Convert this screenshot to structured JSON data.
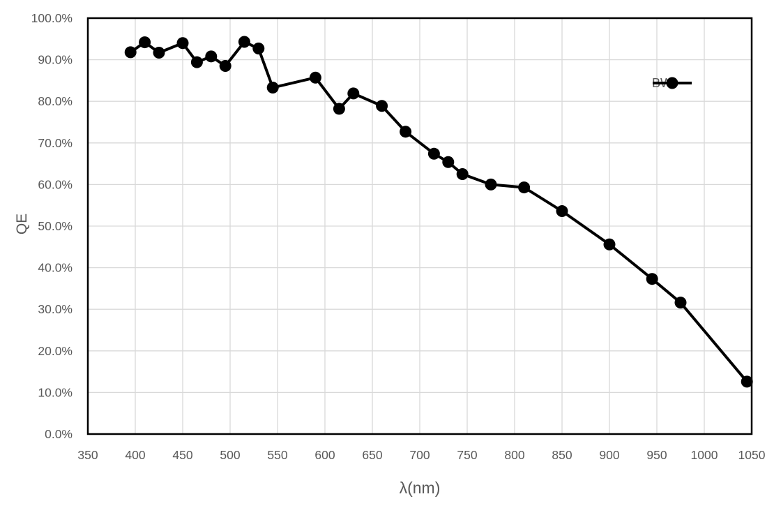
{
  "chart_data": {
    "type": "line",
    "title": "",
    "xlabel": "λ(nm)",
    "ylabel": "QE",
    "xlim": [
      350,
      1050
    ],
    "ylim_pct": [
      0,
      100
    ],
    "grid": true,
    "legend_position": "inside-top-right",
    "x_ticks": [
      350,
      400,
      450,
      500,
      550,
      600,
      650,
      700,
      750,
      800,
      850,
      900,
      950,
      1000,
      1050
    ],
    "y_ticks": [
      "0.0%",
      "10.0%",
      "20.0%",
      "30.0%",
      "40.0%",
      "50.0%",
      "60.0%",
      "70.0%",
      "80.0%",
      "90.0%",
      "100.0%"
    ],
    "series": [
      {
        "name": "BW",
        "color": "#000000",
        "marker": "circle",
        "x": [
          395,
          410,
          425,
          450,
          465,
          480,
          495,
          515,
          530,
          545,
          590,
          615,
          630,
          660,
          685,
          715,
          730,
          745,
          775,
          810,
          850,
          900,
          945,
          975,
          1045
        ],
        "y_pct": [
          91.8,
          94.2,
          91.7,
          94.0,
          89.4,
          90.8,
          88.5,
          94.3,
          92.7,
          83.3,
          85.7,
          78.2,
          81.9,
          78.9,
          72.7,
          67.4,
          65.4,
          62.5,
          60.0,
          59.3,
          53.6,
          45.6,
          37.3,
          31.6,
          12.6
        ]
      }
    ],
    "colors": {
      "gridline": "#d9d9d9",
      "plot_border": "#000000",
      "tick_label": "#595959",
      "axis_title": "#595959",
      "background": "#ffffff"
    }
  }
}
